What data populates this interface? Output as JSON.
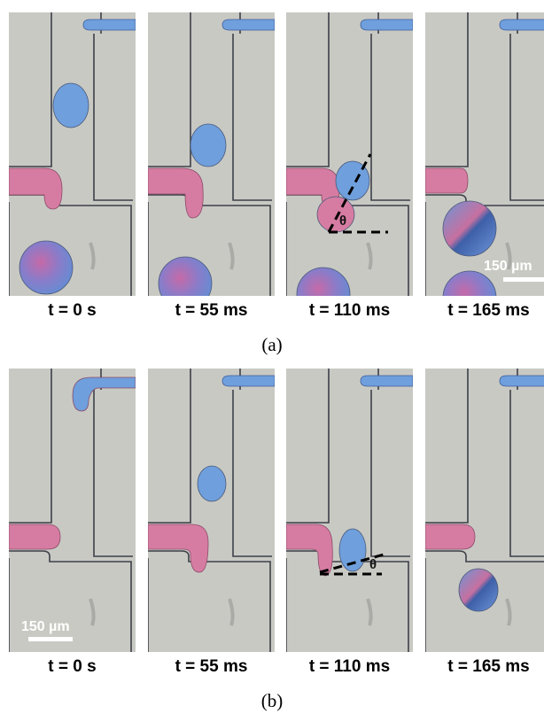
{
  "panels": [
    {
      "label": "(a)",
      "frames": [
        "t = 0 s",
        "t = 55 ms",
        "t = 110 ms",
        "t = 165 ms"
      ],
      "scale_bar": "150 µm",
      "angle_label": "θ"
    },
    {
      "label": "(b)",
      "frames": [
        "t = 0 s",
        "t = 55 ms",
        "t = 110 ms",
        "t = 165 ms"
      ],
      "scale_bar": "150 µm",
      "angle_label": "θ"
    }
  ]
}
